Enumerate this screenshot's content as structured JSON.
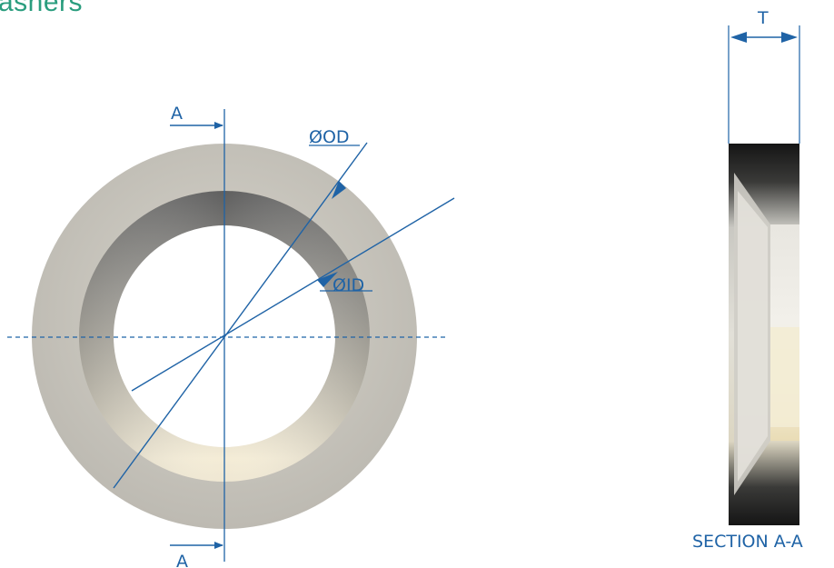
{
  "title": "ashers",
  "labels": {
    "section_marker_top": "A",
    "section_marker_bottom": "A",
    "outer_diameter": "ØOD",
    "inner_diameter": "ØID",
    "thickness": "T",
    "section_caption": "SECTION A-A"
  },
  "colors": {
    "dimension_line": "#1f63a6",
    "title_text": "#2a9d7e",
    "washer_face": "#c6c3bb",
    "bore_shadow": "#6b6b6b",
    "section_dark": "#1e1e1e"
  }
}
